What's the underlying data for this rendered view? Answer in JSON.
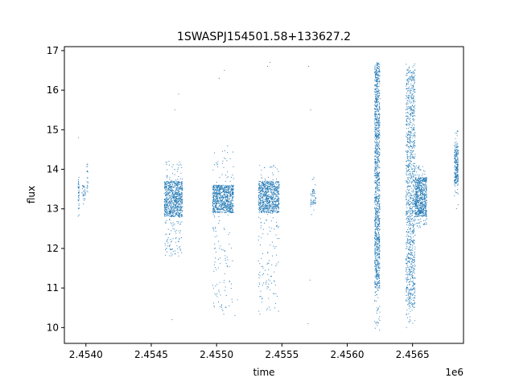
{
  "chart_data": {
    "type": "scatter",
    "title": "1SWASPJ154501.58+133627.2",
    "xlabel": "time",
    "ylabel": "flux",
    "x_offset_label": "1e6",
    "xlim": [
      2453735,
      2456790
    ],
    "ylim": [
      9.6,
      17.1
    ],
    "x_ticks": [
      2453900,
      2454400,
      2454900,
      2455400,
      2455900,
      2456400
    ],
    "x_tick_labels": [
      "2.4540",
      "2.4545",
      "2.4550",
      "2.4555",
      "2.4560",
      "2.4565"
    ],
    "y_ticks": [
      10,
      11,
      12,
      13,
      14,
      15,
      16,
      17
    ],
    "y_tick_labels": [
      "10",
      "11",
      "12",
      "13",
      "14",
      "15",
      "16",
      "17"
    ],
    "marker_color": "#1f77b4",
    "grid": false,
    "series": [
      {
        "clusters": [
          {
            "x_range": [
              2453840,
              2453848
            ],
            "core": [
              13.0,
              13.8
            ],
            "spread": [
              12.7,
              14.0
            ],
            "n": 40
          },
          {
            "x_range": [
              2453870,
              2453900
            ],
            "core": [
              13.2,
              13.6
            ],
            "spread": [
              12.9,
              13.9
            ],
            "n": 30
          },
          {
            "x_range": [
              2453905,
              2453915
            ],
            "core": [
              13.4,
              14.0
            ],
            "spread": [
              13.2,
              14.4
            ],
            "n": 20
          },
          {
            "x_range": [
              2454500,
              2454640
            ],
            "core": [
              12.8,
              13.7
            ],
            "spread": [
              11.8,
              14.2
            ],
            "n": 900
          },
          {
            "x_range": [
              2454870,
              2455030
            ],
            "core": [
              12.9,
              13.6
            ],
            "spread": [
              10.3,
              14.6
            ],
            "n": 900
          },
          {
            "x_range": [
              2455220,
              2455380
            ],
            "core": [
              12.9,
              13.7
            ],
            "spread": [
              10.3,
              14.1
            ],
            "n": 900
          },
          {
            "x_range": [
              2455620,
              2455660
            ],
            "core": [
              13.1,
              13.5
            ],
            "spread": [
              12.8,
              14.0
            ],
            "n": 60
          },
          {
            "x_range": [
              2456110,
              2456150
            ],
            "core": [
              11.0,
              16.7
            ],
            "spread": [
              9.9,
              16.7
            ],
            "n": 1200
          },
          {
            "x_range": [
              2456350,
              2456420
            ],
            "core": [
              10.5,
              16.5
            ],
            "spread": [
              10.0,
              16.7
            ],
            "n": 1100
          },
          {
            "x_range": [
              2456420,
              2456510
            ],
            "core": [
              12.8,
              13.8
            ],
            "spread": [
              12.5,
              14.1
            ],
            "n": 700
          },
          {
            "x_range": [
              2456720,
              2456750
            ],
            "core": [
              13.6,
              14.6
            ],
            "spread": [
              13.0,
              15.0
            ],
            "n": 250
          }
        ],
        "outliers": [
          {
            "x": 2453843,
            "y": 14.8
          },
          {
            "x": 2454560,
            "y": 10.2
          },
          {
            "x": 2454580,
            "y": 15.5
          },
          {
            "x": 2454610,
            "y": 15.9
          },
          {
            "x": 2454920,
            "y": 16.3
          },
          {
            "x": 2454960,
            "y": 16.5
          },
          {
            "x": 2455040,
            "y": 10.3
          },
          {
            "x": 2455060,
            "y": 10.7
          },
          {
            "x": 2455290,
            "y": 16.6
          },
          {
            "x": 2455310,
            "y": 16.7
          },
          {
            "x": 2455605,
            "y": 16.6
          },
          {
            "x": 2455620,
            "y": 15.5
          },
          {
            "x": 2455600,
            "y": 10.1
          },
          {
            "x": 2455615,
            "y": 11.2
          }
        ]
      }
    ]
  }
}
